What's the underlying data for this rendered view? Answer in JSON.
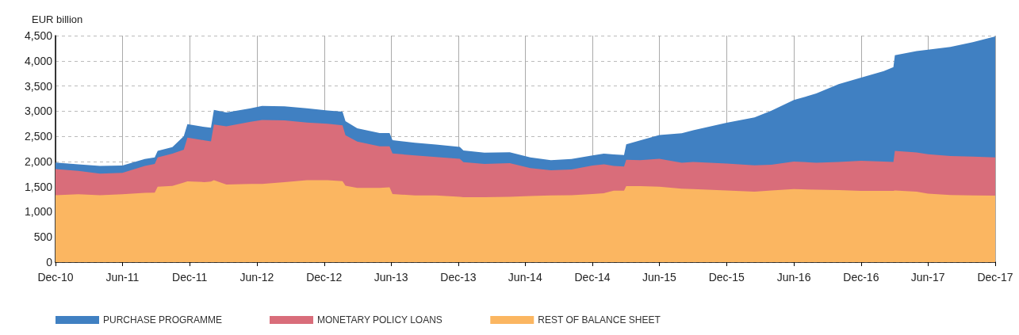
{
  "chart_data": {
    "type": "area",
    "stacked": true,
    "ylabel": "EUR billion",
    "legend": "bottom",
    "grid": true,
    "x": [
      "2010-12-01",
      "2011-02-01",
      "2011-04-01",
      "2011-06-01",
      "2011-08-01",
      "2011-08-28",
      "2011-09-05",
      "2011-10-15",
      "2011-11-15",
      "2011-11-25",
      "2012-01-10",
      "2012-01-28",
      "2012-02-05",
      "2012-03-10",
      "2012-05-15",
      "2012-06-15",
      "2012-08-15",
      "2012-10-15",
      "2012-12-10",
      "2013-01-20",
      "2013-01-28",
      "2013-03-01",
      "2013-05-01",
      "2013-05-28",
      "2013-06-05",
      "2013-08-05",
      "2013-10-01",
      "2013-12-05",
      "2013-12-15",
      "2014-02-10",
      "2014-04-20",
      "2014-06-15",
      "2014-08-10",
      "2014-10-05",
      "2014-12-01",
      "2015-01-01",
      "2015-01-28",
      "2015-02-25",
      "2015-03-03",
      "2015-04-10",
      "2015-06-01",
      "2015-08-01",
      "2015-09-01",
      "2015-12-01",
      "2016-02-15",
      "2016-04-01",
      "2016-06-01",
      "2016-08-01",
      "2016-10-01",
      "2016-12-01",
      "2017-02-01",
      "2017-02-27",
      "2017-03-03",
      "2017-05-01",
      "2017-06-01",
      "2017-08-01",
      "2017-10-01",
      "2017-12-01"
    ],
    "series": [
      {
        "name": "REST OF BALANCE SHEET",
        "color": "#fbb661",
        "values": [
          1330,
          1350,
          1330,
          1350,
          1375,
          1380,
          1500,
          1515,
          1580,
          1605,
          1590,
          1600,
          1630,
          1540,
          1555,
          1555,
          1590,
          1630,
          1630,
          1610,
          1520,
          1475,
          1475,
          1485,
          1355,
          1325,
          1325,
          1300,
          1290,
          1290,
          1300,
          1315,
          1325,
          1330,
          1355,
          1370,
          1420,
          1420,
          1510,
          1510,
          1500,
          1460,
          1450,
          1425,
          1400,
          1425,
          1450,
          1440,
          1430,
          1415,
          1415,
          1415,
          1425,
          1400,
          1360,
          1335,
          1325,
          1320
        ]
      },
      {
        "name": "MONETARY POLICY LOANS",
        "color": "#d96d7a",
        "values": [
          520,
          465,
          430,
          425,
          535,
          570,
          580,
          640,
          655,
          870,
          830,
          800,
          1105,
          1160,
          1235,
          1270,
          1225,
          1145,
          1120,
          1110,
          1000,
          920,
          825,
          815,
          805,
          795,
          765,
          755,
          695,
          660,
          665,
          555,
          500,
          510,
          565,
          575,
          490,
          480,
          525,
          515,
          555,
          515,
          540,
          535,
          525,
          510,
          550,
          535,
          560,
          600,
          585,
          575,
          785,
          780,
          785,
          775,
          770,
          760
        ]
      },
      {
        "name": "PURCHASE PROGRAMME",
        "color": "#4080c2",
        "values": [
          130,
          130,
          150,
          145,
          140,
          130,
          130,
          130,
          265,
          265,
          265,
          270,
          290,
          275,
          265,
          280,
          280,
          280,
          265,
          270,
          280,
          265,
          265,
          265,
          265,
          250,
          245,
          235,
          235,
          225,
          220,
          210,
          200,
          210,
          200,
          210,
          230,
          230,
          305,
          395,
          470,
          585,
          630,
          810,
          950,
          1075,
          1220,
          1375,
          1545,
          1650,
          1795,
          1885,
          1900,
          2015,
          2075,
          2165,
          2275,
          2405
        ]
      }
    ],
    "xlim": [
      "2010-12-01",
      "2017-12-01"
    ],
    "xticks": [
      {
        "value": "2010-12-01",
        "label": "Dec-10"
      },
      {
        "value": "2011-06-01",
        "label": "Jun-11"
      },
      {
        "value": "2011-12-01",
        "label": "Dec-11"
      },
      {
        "value": "2012-06-01",
        "label": "Jun-12"
      },
      {
        "value": "2012-12-01",
        "label": "Dec-12"
      },
      {
        "value": "2013-06-01",
        "label": "Jun-13"
      },
      {
        "value": "2013-12-01",
        "label": "Dec-13"
      },
      {
        "value": "2014-06-01",
        "label": "Jun-14"
      },
      {
        "value": "2014-12-01",
        "label": "Dec-14"
      },
      {
        "value": "2015-06-01",
        "label": "Jun-15"
      },
      {
        "value": "2015-12-01",
        "label": "Dec-15"
      },
      {
        "value": "2016-06-01",
        "label": "Jun-16"
      },
      {
        "value": "2016-12-01",
        "label": "Dec-16"
      },
      {
        "value": "2017-06-01",
        "label": "Jun-17"
      },
      {
        "value": "2017-12-01",
        "label": "Dec-17"
      }
    ],
    "ylim": [
      0,
      4500
    ],
    "yticks": [
      0,
      500,
      {
        "value": 1000,
        "label": "1,000"
      },
      {
        "value": 1500,
        "label": "1,500"
      },
      {
        "value": 2000,
        "label": "2,000"
      },
      {
        "value": 2500,
        "label": "2,500"
      },
      {
        "value": 3000,
        "label": "3,000"
      },
      {
        "value": 3500,
        "label": "3,500"
      },
      {
        "value": 4000,
        "label": "4,000"
      },
      {
        "value": 4500,
        "label": "4,500"
      }
    ]
  }
}
